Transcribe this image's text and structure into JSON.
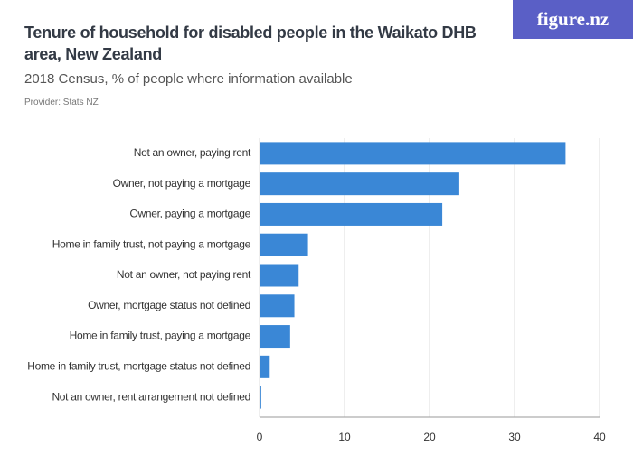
{
  "logo": "figure.nz",
  "chart_data": {
    "type": "bar",
    "title": "Tenure of household for disabled people in the Waikato DHB area, New Zealand",
    "subtitle": "2018 Census, % of people where information available",
    "source": "Provider: Stats NZ",
    "categories": [
      "Not an owner, paying rent",
      "Owner, not paying a mortgage",
      "Owner, paying a mortgage",
      "Home in family trust, not paying a mortgage",
      "Not an owner, not paying rent",
      "Owner, mortgage status not defined",
      "Home in family trust, paying a mortgage",
      "Home in family trust, mortgage status not defined",
      "Not an owner, rent arrangement not defined"
    ],
    "values": [
      36.0,
      23.5,
      21.5,
      5.7,
      4.6,
      4.1,
      3.6,
      1.2,
      0.2
    ],
    "color": "#3a87d6",
    "xlim": [
      0,
      40
    ],
    "xticks": [
      0,
      10,
      20,
      30,
      40
    ],
    "grid": true
  }
}
